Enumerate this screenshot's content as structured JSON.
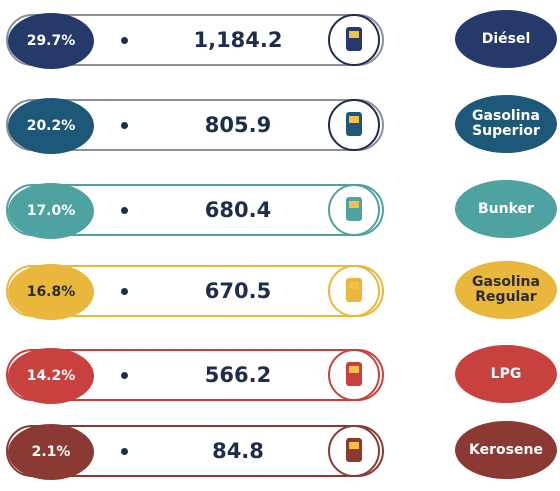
{
  "rows": [
    {
      "percent": "29.7%",
      "value": "1,184.2",
      "label": "Diésel"
    },
    {
      "percent": "20.2%",
      "value": "805.9",
      "label": "Gasolina Superior"
    },
    {
      "percent": "17.0%",
      "value": "680.4",
      "label": "Bunker"
    },
    {
      "percent": "16.8%",
      "value": "670.5",
      "label": "Gasolina Regular"
    },
    {
      "percent": "14.2%",
      "value": "566.2",
      "label": "LPG"
    },
    {
      "percent": "2.1%",
      "value": "84.8",
      "label": "Kerosene"
    }
  ]
}
